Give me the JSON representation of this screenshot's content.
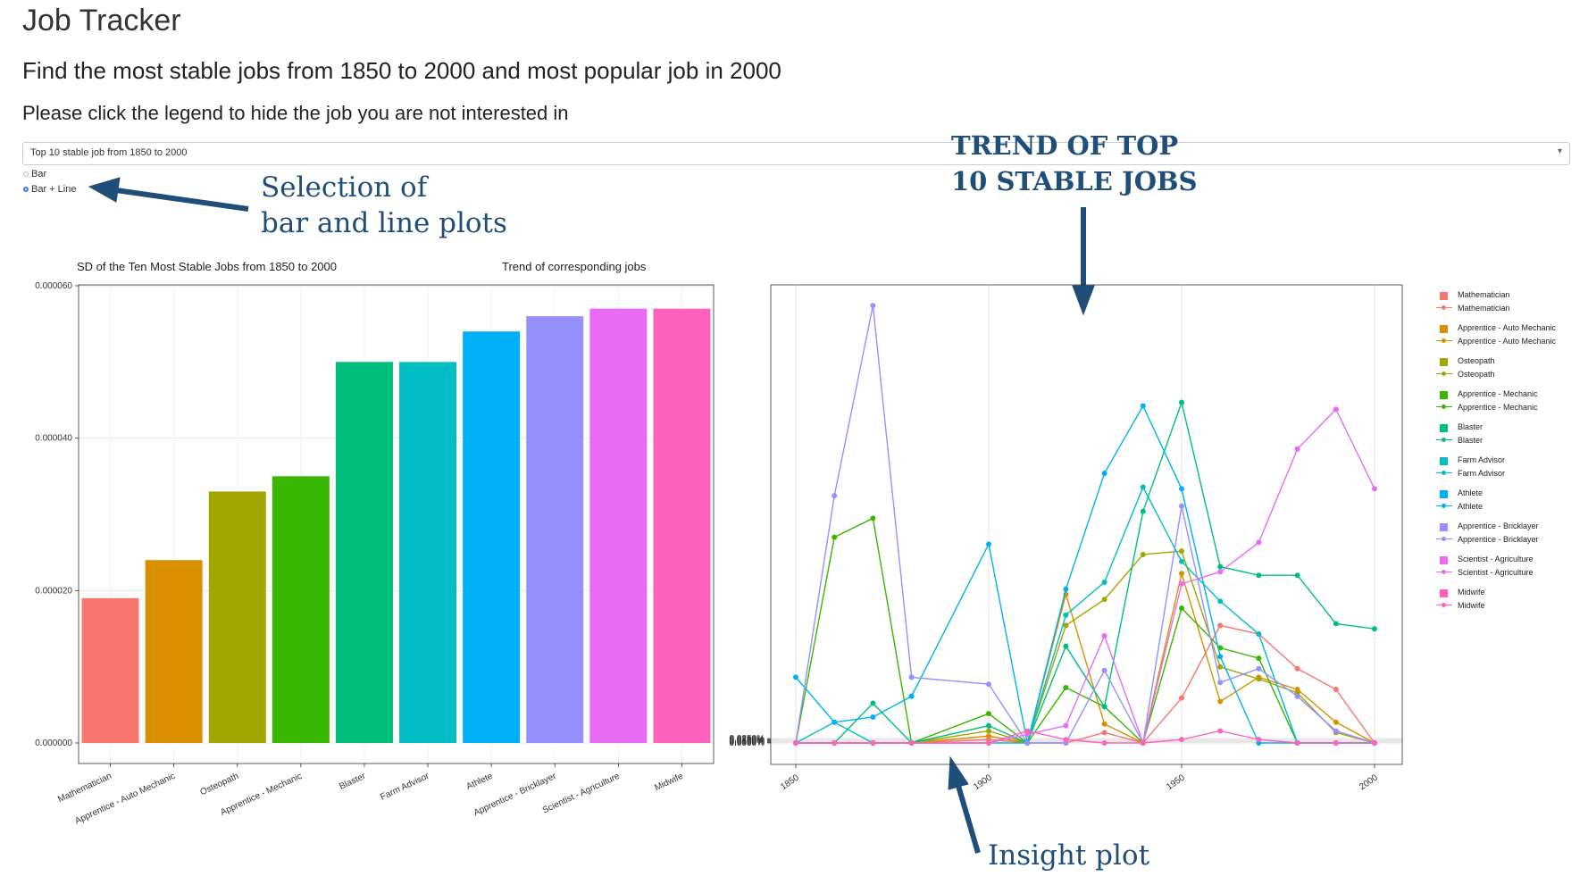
{
  "header": {
    "title": "Job Tracker",
    "subtitle": "Find the most stable jobs from 1850 to 2000 and most popular job in 2000",
    "instruction": "Please click the legend to hide the job you are not interested in"
  },
  "select": {
    "value": "Top 10 stable job from 1850 to 2000"
  },
  "radios": {
    "options": [
      "Bar",
      "Bar + Line"
    ],
    "selected": "Bar + Line"
  },
  "annotations": {
    "selection": [
      "Selection of",
      "bar and line plots"
    ],
    "trend": [
      "TREND OF TOP",
      "10 STABLE JOBS"
    ],
    "insight": "Insight plot"
  },
  "colors": {
    "annotation": "#1f4e79",
    "jobs": [
      "#F8766D",
      "#D89000",
      "#A3A500",
      "#39B600",
      "#00BF7D",
      "#00BFC4",
      "#00B0F6",
      "#9590FF",
      "#E76BF3",
      "#FF62BC"
    ]
  },
  "chart_data": [
    {
      "type": "bar",
      "title": "SD of the Ten Most Stable Jobs from 1850 to 2000",
      "categories": [
        "Mathematician",
        "Apprentice - Auto Mechanic",
        "Osteopath",
        "Apprentice - Mechanic",
        "Blaster",
        "Farm Advisor",
        "Athlete",
        "Apprentice - Bricklayer",
        "Scientist - Agriculture",
        "Midwife"
      ],
      "values": [
        1.9e-05,
        2.4e-05,
        3.3e-05,
        3.5e-05,
        5e-05,
        5e-05,
        5.4e-05,
        5.6e-05,
        5.7e-05,
        5.7e-05
      ],
      "y_ticks": [
        "0.000000",
        "0.000020",
        "0.000040",
        "0.000060"
      ],
      "ylim": [
        0,
        6e-05
      ],
      "grid": true
    },
    {
      "type": "line",
      "title": "Trend of corresponding jobs",
      "x": [
        1850,
        1860,
        1870,
        1880,
        1900,
        1910,
        1920,
        1930,
        1940,
        1950,
        1960,
        1970,
        1980,
        1990,
        2000
      ],
      "x_ticks": [
        "1850",
        "1900",
        "1950",
        "2000"
      ],
      "y_ticks": [
        "0.0000%",
        "0.0050%",
        "0.0100%",
        "0.0150%",
        "0.0200%",
        "0.0250%"
      ],
      "ylim": [
        0,
        0.026
      ],
      "grid": true,
      "legend_position": "right",
      "series": [
        {
          "name": "Mathematician",
          "values": [
            0,
            0,
            0,
            0,
            0.0002,
            0,
            0,
            0.0006,
            0,
            0.0026,
            0.0068,
            0.0063,
            0.0043,
            0.0031,
            0
          ]
        },
        {
          "name": "Apprentice - Auto Mechanic",
          "values": [
            0,
            0,
            0,
            0,
            0.0004,
            0,
            0.0086,
            0.0011,
            0,
            0.0098,
            0.0024,
            0.0038,
            0.0031,
            0.0012,
            0
          ]
        },
        {
          "name": "Osteopath",
          "values": [
            0,
            0,
            0,
            0,
            0.0007,
            0,
            0.0068,
            0.0083,
            0.0109,
            0.0111,
            0.0044,
            0.0037,
            0.0029,
            0.0006,
            0
          ]
        },
        {
          "name": "Apprentice - Mechanic",
          "values": [
            0,
            0.0119,
            0.013,
            0,
            0.0017,
            0,
            0.0032,
            0.0021,
            0,
            0.0078,
            0.0055,
            0.0049,
            0,
            0,
            0
          ]
        },
        {
          "name": "Blaster",
          "values": [
            0,
            0,
            0.0023,
            0,
            0.001,
            0,
            0.0056,
            0.0021,
            0.0134,
            0.0197,
            0.0102,
            0.0097,
            0.0097,
            0.0069,
            0.0066
          ]
        },
        {
          "name": "Farm Advisor",
          "values": [
            0,
            0.0012,
            0,
            0,
            0,
            0,
            0.0074,
            0.0093,
            0.0148,
            0.0105,
            0.0082,
            0.0063,
            0,
            0,
            0
          ]
        },
        {
          "name": "Athlete",
          "values": [
            0.0038,
            0.0012,
            0.0015,
            0.0027,
            0.0115,
            0,
            0.0089,
            0.0156,
            0.0195,
            0.0147,
            0.005,
            0,
            0,
            0,
            0
          ]
        },
        {
          "name": "Apprentice - Bricklayer",
          "values": [
            0,
            0.0143,
            0.0253,
            0.0038,
            0.0034,
            0,
            0,
            0.0042,
            0,
            0.0137,
            0.0035,
            0.0043,
            0.0027,
            0.0007,
            0
          ]
        },
        {
          "name": "Scientist - Agriculture",
          "values": [
            0,
            0,
            0,
            0,
            0,
            0.0005,
            0.001,
            0.0062,
            0,
            0.0092,
            0.0099,
            0.0116,
            0.017,
            0.0193,
            0.0147
          ]
        },
        {
          "name": "Midwife",
          "values": [
            0,
            0,
            0,
            0,
            0,
            0.0007,
            0.0002,
            0,
            0,
            0.0002,
            0.0007,
            0.0002,
            0,
            0,
            0
          ]
        }
      ]
    }
  ]
}
